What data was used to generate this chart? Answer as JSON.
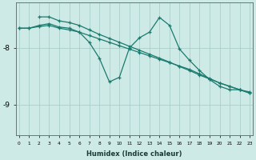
{
  "xlabel": "Humidex (Indice chaleur)",
  "background_color": "#ceeae6",
  "grid_color": "#aacfcb",
  "line_color": "#1a7a6e",
  "xlim": [
    -0.3,
    23.3
  ],
  "ylim": [
    -9.55,
    -7.2
  ],
  "yticks": [
    -9.0,
    -8.0
  ],
  "xticks": [
    0,
    1,
    2,
    3,
    4,
    5,
    6,
    7,
    8,
    9,
    10,
    11,
    12,
    13,
    14,
    15,
    16,
    17,
    18,
    19,
    20,
    21,
    22,
    23
  ],
  "s1x": [
    0,
    1,
    2,
    3,
    4,
    5,
    6,
    7,
    8,
    9,
    10,
    11,
    12,
    13,
    14,
    15,
    16,
    17,
    18,
    19,
    20,
    21,
    22,
    23
  ],
  "s1y": [
    -7.65,
    -7.65,
    -7.62,
    -7.6,
    -7.65,
    -7.68,
    -7.72,
    -7.78,
    -7.84,
    -7.9,
    -7.96,
    -8.02,
    -8.08,
    -8.14,
    -8.2,
    -8.26,
    -8.32,
    -8.38,
    -8.46,
    -8.54,
    -8.62,
    -8.68,
    -8.74,
    -8.8
  ],
  "s2x": [
    0,
    1,
    2,
    3,
    4,
    5,
    6,
    7,
    8,
    9,
    10,
    11,
    12,
    13,
    14,
    15,
    16,
    17,
    18,
    19,
    20,
    21,
    22,
    23
  ],
  "s2y": [
    -7.65,
    -7.65,
    -7.6,
    -7.57,
    -7.63,
    -7.65,
    -7.72,
    -7.9,
    -8.18,
    -8.6,
    -8.52,
    -8.0,
    -7.82,
    -7.72,
    -7.46,
    -7.6,
    -8.02,
    -8.22,
    -8.4,
    -8.56,
    -8.68,
    -8.74,
    -8.74,
    -8.78
  ],
  "s3x": [
    2,
    3,
    4,
    5,
    6,
    7,
    8,
    9,
    10,
    11,
    12,
    13,
    14,
    15,
    16,
    17,
    18,
    19,
    20,
    21,
    22,
    23
  ],
  "s3y": [
    -7.45,
    -7.45,
    -7.52,
    -7.55,
    -7.6,
    -7.68,
    -7.76,
    -7.83,
    -7.9,
    -7.97,
    -8.04,
    -8.11,
    -8.18,
    -8.25,
    -8.33,
    -8.4,
    -8.48,
    -8.55,
    -8.62,
    -8.68,
    -8.74,
    -8.8
  ]
}
